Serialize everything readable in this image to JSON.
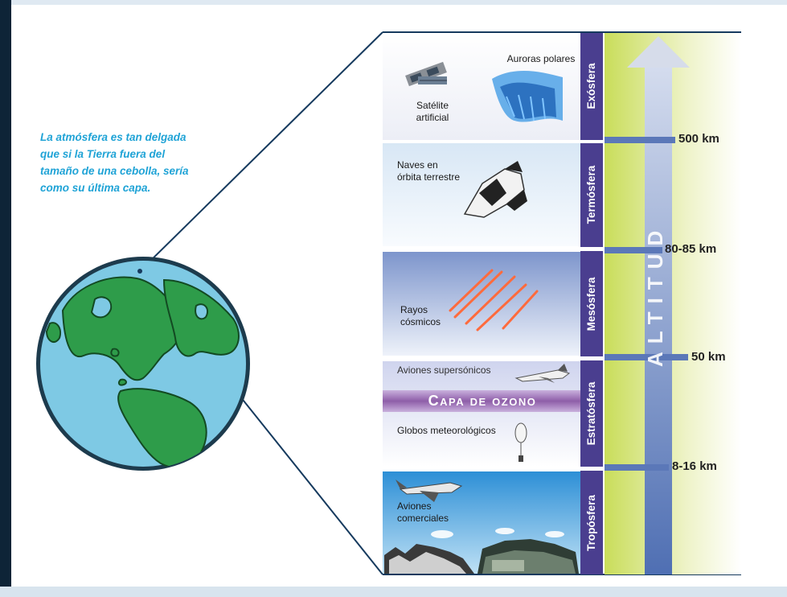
{
  "intro_text": "La atmósfera es tan delgada que si la Tierra fuera del tamaño de una cebolla, sería como su última capa.",
  "layers": [
    {
      "name": "Exósfera",
      "items": [
        "Satélite artificial",
        "Auroras polares"
      ]
    },
    {
      "name": "Termósfera",
      "items": [
        "Naves en órbita terrestre"
      ]
    },
    {
      "name": "Mesósfera",
      "items": [
        "Rayos cósmicos"
      ]
    },
    {
      "name": "Estratósfera",
      "items": [
        "Aviones supersónicos",
        "Capa de ozono",
        "Globos meteorológicos"
      ]
    },
    {
      "name": "Tropósfera",
      "items": [
        "Aviones comerciales"
      ]
    }
  ],
  "boundaries": [
    "500 km",
    "80-85 km",
    "50 km",
    "8-16 km"
  ],
  "axis_label": "ALTITUD",
  "colors": {
    "intro_text": "#1fa3d6",
    "strip": "#4a3e8f",
    "arrow": "#5f7fbd",
    "ozone": "#8e5ea8",
    "ocean": "#7ec9e4",
    "land": "#2e9c4a",
    "gradient_bar": "#dbe88a"
  },
  "icons": [
    "satellite-icon",
    "aurora-icon",
    "space-shuttle-icon",
    "cosmic-ray-icon",
    "supersonic-jet-icon",
    "weather-balloon-icon",
    "airliner-icon",
    "city-icon",
    "earth-globe-icon"
  ]
}
